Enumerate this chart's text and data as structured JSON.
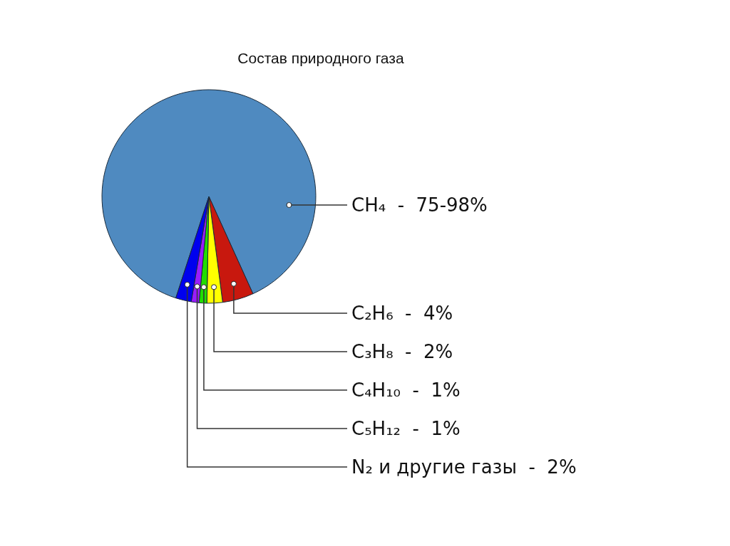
{
  "chart_data": {
    "type": "pie",
    "title": "Состав природного газа",
    "categories": [
      "CH₄",
      "C₂H₆",
      "C₃H₈",
      "C₄H₁₀",
      "C₅H₁₂",
      "N₂ и другие газы"
    ],
    "values": [
      75,
      4,
      2,
      1,
      1,
      2
    ],
    "value_labels": [
      "75-98%",
      "4%",
      "2%",
      "1%",
      "1%",
      "2%"
    ],
    "colors": [
      "#4f8ac0",
      "#c8180e",
      "#ffff00",
      "#22dd00",
      "#9b1cff",
      "#0000ee"
    ]
  }
}
